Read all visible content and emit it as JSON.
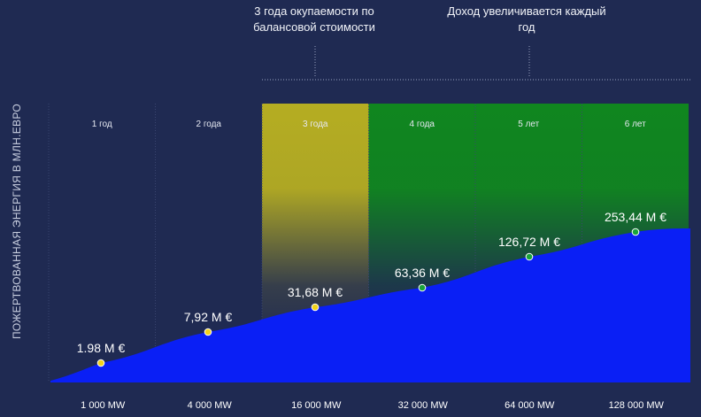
{
  "annotations": {
    "payback": "3 года окупаемости по балансовой стоимости",
    "income": "Доход увеличивается каждый год"
  },
  "chart_data": {
    "type": "area",
    "title": "",
    "ylabel": "ПОЖЕРТВОВАННАЯ ЭНЕРГИЯ В МЛН.ЕВРО",
    "xlabel": "",
    "categories": [
      "1 000 MW",
      "4 000 MW",
      "16 000 MW",
      "32 000 MW",
      "64 000 MW",
      "128 000 MW"
    ],
    "periods": [
      "1 год",
      "2 года",
      "3 года",
      "4 года",
      "5 лет",
      "6 лет"
    ],
    "values": [
      1.98,
      7.92,
      31.68,
      63.36,
      126.72,
      253.44
    ],
    "value_labels": [
      "1.98 M €",
      "7,92 M €",
      "31,68 M €",
      "63,36 M €",
      "126,72 M €",
      "253,44 M €"
    ],
    "period_status": [
      "none",
      "none",
      "payback",
      "income",
      "income",
      "income"
    ],
    "colors": {
      "background": "#1f2a52",
      "area": "#0a1ff5",
      "payback": "#b5ad22",
      "income": "#10861f",
      "point_payback": "#f2d21a",
      "point_income": "#1aa33a"
    },
    "grid": false,
    "legend": "none"
  }
}
